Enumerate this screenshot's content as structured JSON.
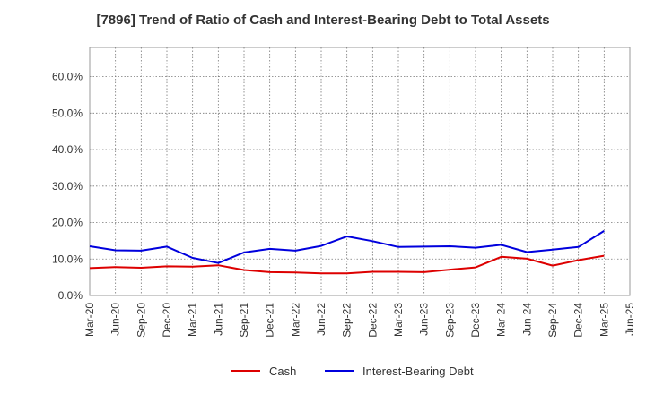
{
  "chart_data": {
    "type": "line",
    "title": "[7896]  Trend of Ratio of Cash and Interest-Bearing Debt to Total Assets",
    "xlabel": "",
    "ylabel": "",
    "categories": [
      "Mar-20",
      "Jun-20",
      "Sep-20",
      "Dec-20",
      "Mar-21",
      "Jun-21",
      "Sep-21",
      "Dec-21",
      "Mar-22",
      "Jun-22",
      "Sep-22",
      "Dec-22",
      "Mar-23",
      "Jun-23",
      "Sep-23",
      "Dec-23",
      "Mar-24",
      "Jun-24",
      "Sep-24",
      "Dec-24",
      "Mar-25",
      "Jun-25"
    ],
    "ylim": [
      0,
      68
    ],
    "yticks": [
      0,
      10,
      20,
      30,
      40,
      50,
      60
    ],
    "ytick_labels": [
      "0.0%",
      "10.0%",
      "20.0%",
      "30.0%",
      "40.0%",
      "50.0%",
      "60.0%"
    ],
    "grid": true,
    "legend_position": "bottom-center",
    "series": [
      {
        "name": "Cash",
        "color": "#dd0000",
        "values": [
          7.5,
          7.8,
          7.6,
          8.0,
          7.9,
          8.3,
          7.0,
          6.4,
          6.3,
          6.1,
          6.1,
          6.5,
          6.5,
          6.4,
          7.1,
          7.7,
          10.6,
          10.1,
          8.2,
          9.7,
          10.9,
          null
        ]
      },
      {
        "name": "Interest-Bearing Debt",
        "color": "#0000dd",
        "values": [
          13.5,
          12.4,
          12.3,
          13.4,
          10.3,
          8.9,
          11.8,
          12.8,
          12.3,
          13.6,
          16.2,
          14.9,
          13.3,
          13.4,
          13.5,
          13.1,
          13.9,
          11.9,
          12.6,
          13.3,
          17.7,
          null
        ]
      }
    ]
  }
}
